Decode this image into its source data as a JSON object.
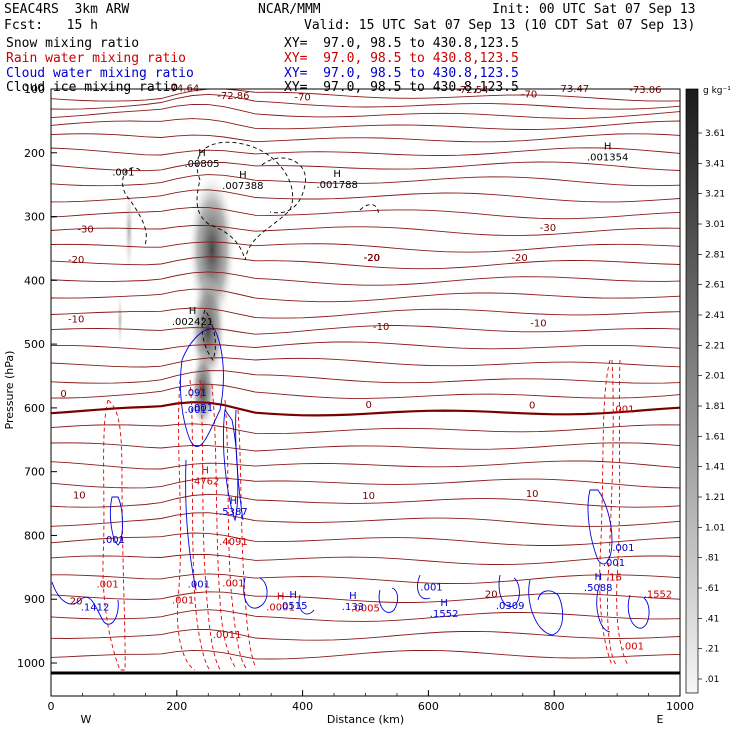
{
  "header": {
    "left1": "SEAC4RS  3km ARW",
    "left2": "Fcst:   15 h",
    "center1": "NCAR/MMM",
    "init": "Init: 00 UTC Sat 07 Sep 13",
    "valid": "Valid: 15 UTC Sat 07 Sep 13 (10 CDT Sat 07 Sep 13)"
  },
  "legend": [
    {
      "label": "Snow mixing ratio",
      "xy": "XY=  97.0, 98.5 to 430.8,123.5",
      "color": "#000000"
    },
    {
      "label": "Rain water mixing ratio",
      "xy": "XY=  97.0, 98.5 to 430.8,123.5",
      "color": "#cc0000"
    },
    {
      "label": "Cloud water mixing ratio",
      "xy": "XY=  97.0, 98.5 to 430.8,123.5",
      "color": "#0000cc"
    },
    {
      "label": "Cloud ice mixing ratio",
      "xy": "XY=  97.0, 98.5 to 430.8,123.5",
      "color": "#000000"
    }
  ],
  "chart_data": {
    "type": "contour-cross-section",
    "xlabel": "Distance (km)",
    "ylabel": "Pressure (hPa)",
    "xlim": [
      0,
      1000
    ],
    "ylim": [
      1040,
      100
    ],
    "x_ticks": [
      "0",
      "200",
      "400",
      "600",
      "800",
      "1000"
    ],
    "x_tick_values": [
      0,
      200,
      400,
      600,
      800,
      1000
    ],
    "y_ticks": [
      "100",
      "200",
      "300",
      "400",
      "500",
      "600",
      "700",
      "800",
      "900",
      "1000"
    ],
    "y_tick_values": [
      100,
      200,
      300,
      400,
      500,
      600,
      700,
      800,
      900,
      1000
    ],
    "direction_labels": {
      "west": "W",
      "east": "E"
    },
    "colorbar": {
      "unit": "g kg⁻¹",
      "labels": [
        "3.61",
        "3.41",
        "3.21",
        "3.01",
        "2.81",
        "2.61",
        "2.41",
        "2.21",
        "2.01",
        "1.81",
        "1.61",
        "1.41",
        "1.21",
        "1.01",
        ".81",
        ".61",
        ".41",
        ".21",
        ".01"
      ]
    },
    "temperature_contour_labels": [
      {
        "text": "-74.64",
        "x": 210,
        "p": 104
      },
      {
        "text": "-72.86",
        "x": 290,
        "p": 116
      },
      {
        "text": "-70",
        "x": 400,
        "p": 118
      },
      {
        "text": "-72.54",
        "x": 670,
        "p": 106
      },
      {
        "text": "-70",
        "x": 760,
        "p": 113
      },
      {
        "text": "-73.47",
        "x": 830,
        "p": 105
      },
      {
        "text": "-73.06",
        "x": 945,
        "p": 106
      },
      {
        "text": "-30",
        "x": 55,
        "p": 325
      },
      {
        "text": "-30",
        "x": 790,
        "p": 323
      },
      {
        "text": "-20",
        "x": 40,
        "p": 373
      },
      {
        "text": "-20",
        "x": 510,
        "p": 370
      },
      {
        "text": "-20",
        "x": 745,
        "p": 370
      },
      {
        "text": "-20",
        "x": 510,
        "p": 370
      },
      {
        "text": "-20",
        "x": 510,
        "p": 370
      },
      {
        "text": "-20",
        "x": 510,
        "p": 370
      },
      {
        "text": "-10",
        "x": 40,
        "p": 466
      },
      {
        "text": "-10",
        "x": 525,
        "p": 478
      },
      {
        "text": "-10",
        "x": 775,
        "p": 472
      },
      {
        "text": "0",
        "x": 20,
        "p": 583
      },
      {
        "text": "0",
        "x": 505,
        "p": 600
      },
      {
        "text": "0",
        "x": 765,
        "p": 601
      },
      {
        "text": "10",
        "x": 45,
        "p": 742
      },
      {
        "text": "10",
        "x": 505,
        "p": 743
      },
      {
        "text": "10",
        "x": 765,
        "p": 740
      },
      {
        "text": "20",
        "x": 40,
        "p": 908
      },
      {
        "text": "20",
        "x": 700,
        "p": 897
      }
    ],
    "snow_max_labels": [
      {
        "h": "H",
        "text": ".00805",
        "x": 240,
        "p": 222
      },
      {
        "h": "H",
        "text": ".007388",
        "x": 305,
        "p": 257
      },
      {
        "h": "H",
        "text": ".001788",
        "x": 455,
        "p": 255
      },
      {
        "h": "H",
        "text": ".001354",
        "x": 885,
        "p": 212
      },
      {
        "h": "",
        "text": ".001",
        "x": 115,
        "p": 236
      },
      {
        "h": "H",
        "text": ".002421",
        "x": 225,
        "p": 470
      }
    ],
    "rain_labels": [
      {
        "h": "H",
        "text": ".4762",
        "x": 245,
        "p": 720
      },
      {
        "h": "",
        "text": ".4091",
        "x": 290,
        "p": 815
      },
      {
        "h": "H",
        "text": ".0001",
        "x": 365,
        "p": 918
      },
      {
        "h": "",
        "text": ".0005",
        "x": 500,
        "p": 919
      },
      {
        "h": "",
        "text": ".001",
        "x": 910,
        "p": 607
      },
      {
        "h": "",
        "text": ".001",
        "x": 925,
        "p": 979
      },
      {
        "h": "",
        "text": ".0011",
        "x": 280,
        "p": 961
      },
      {
        "h": "",
        "text": ".001",
        "x": 90,
        "p": 882
      },
      {
        "h": "",
        "text": ".001",
        "x": 210,
        "p": 907
      },
      {
        "h": "",
        "text": ".001",
        "x": 290,
        "p": 880
      },
      {
        "h": "",
        "text": ".16",
        "x": 895,
        "p": 871
      },
      {
        "h": "",
        "text": ".1552",
        "x": 965,
        "p": 897
      }
    ],
    "cloud_water_labels": [
      {
        "h": "H",
        "text": ".5387",
        "x": 290,
        "p": 768
      },
      {
        "h": "",
        "text": ".091",
        "x": 230,
        "p": 581
      },
      {
        "h": "",
        "text": ".001",
        "x": 240,
        "p": 605
      },
      {
        "h": "",
        "text": ".001",
        "x": 235,
        "p": 882
      },
      {
        "h": "",
        "text": ".001",
        "x": 100,
        "p": 812
      },
      {
        "h": "H",
        "text": ".0515",
        "x": 385,
        "p": 915
      },
      {
        "h": "H",
        "text": ".133",
        "x": 480,
        "p": 917
      },
      {
        "h": "H",
        "text": ".1552",
        "x": 625,
        "p": 928
      },
      {
        "h": "",
        "text": ".001",
        "x": 605,
        "p": 886
      },
      {
        "h": "",
        "text": ".0309",
        "x": 730,
        "p": 915
      },
      {
        "h": "",
        "text": ".1412",
        "x": 70,
        "p": 918
      },
      {
        "h": "H",
        "text": ".5088",
        "x": 870,
        "p": 887
      },
      {
        "h": "",
        "text": ".001",
        "x": 910,
        "p": 824
      },
      {
        "h": "",
        "text": ".001",
        "x": 895,
        "p": 848
      },
      {
        "h": "",
        "text": ".001",
        "x": 230,
        "p": 608
      }
    ]
  }
}
